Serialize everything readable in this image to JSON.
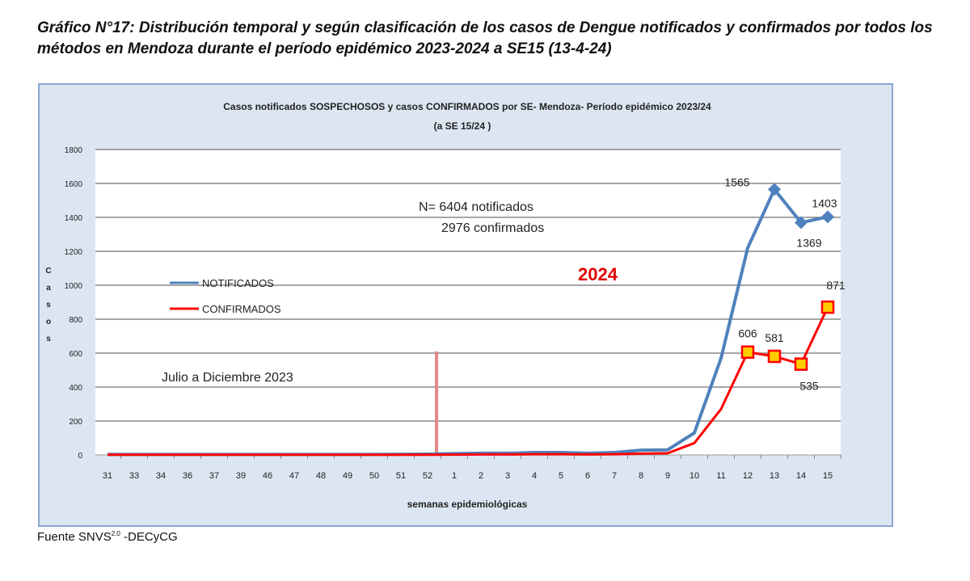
{
  "header": {
    "title": "Gráfico N°17: Distribución temporal y según clasificación de los casos de Dengue notificados y confirmados por todos los métodos en Mendoza durante el  período epidémico 2023-2024 a SE15 (13-4-24)"
  },
  "footer": {
    "source": "Fuente SNVS",
    "source_sup": "2.0",
    "source_suffix": " -DECyCG"
  },
  "chart_data": {
    "type": "line",
    "title": "Casos notificados  SOSPECHOSOS  y casos  CONFIRMADOS por SE- Mendoza-  Período epidémico 2023/24",
    "subtitle": "(a SE 15/24  )",
    "xlabel": "semanas epidemiológicas",
    "ylabel": "Casos",
    "ylim": [
      0,
      1800
    ],
    "yticks": [
      0,
      200,
      400,
      600,
      800,
      1000,
      1200,
      1400,
      1600,
      1800
    ],
    "grid": true,
    "legend": "left",
    "categories": [
      "31",
      "33",
      "34",
      "36",
      "37",
      "39",
      "46",
      "47",
      "48",
      "49",
      "50",
      "51",
      "52",
      "1",
      "2",
      "3",
      "4",
      "5",
      "6",
      "7",
      "8",
      "9",
      "10",
      "11",
      "12",
      "13",
      "14",
      "15"
    ],
    "series": [
      {
        "name": "NOTIFICADOS",
        "color": "#4f81bd",
        "values": [
          3,
          3,
          3,
          3,
          3,
          3,
          3,
          3,
          3,
          3,
          3,
          4,
          5,
          8,
          10,
          10,
          14,
          14,
          10,
          14,
          28,
          30,
          130,
          570,
          1220,
          1565,
          1369,
          1403
        ]
      },
      {
        "name": "CONFIRMADOS",
        "color": "#ff0000",
        "values": [
          1,
          1,
          1,
          1,
          1,
          1,
          1,
          1,
          1,
          1,
          1,
          1,
          1,
          2,
          3,
          3,
          4,
          4,
          3,
          4,
          8,
          10,
          70,
          270,
          606,
          581,
          535,
          871
        ]
      }
    ],
    "data_labels": [
      {
        "series": 0,
        "category": "13",
        "text": "1565"
      },
      {
        "series": 0,
        "category": "14",
        "text": "1369"
      },
      {
        "series": 0,
        "category": "15",
        "text": "1403"
      },
      {
        "series": 1,
        "category": "12",
        "text": "606"
      },
      {
        "series": 1,
        "category": "13",
        "text": "581"
      },
      {
        "series": 1,
        "category": "14",
        "text": "535"
      },
      {
        "series": 1,
        "category": "15",
        "text": "871"
      }
    ],
    "annotations": {
      "totals_line1": "N= 6404 notificados",
      "totals_line2": "2976 confirmados",
      "year": "2024",
      "period": "Julio a Diciembre 2023",
      "separator_height": 610
    }
  }
}
